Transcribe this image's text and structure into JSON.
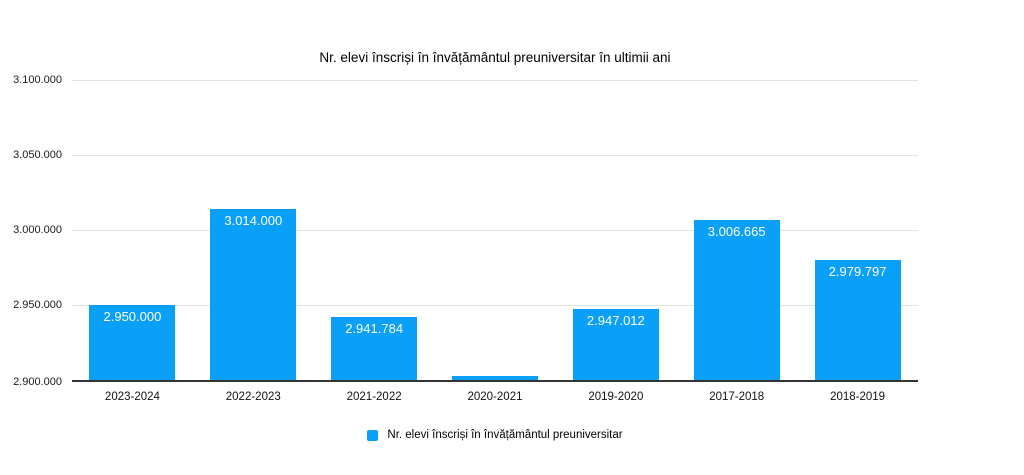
{
  "chart_data": {
    "type": "bar",
    "title": "Nr. elevi înscriși în învățământul preuniversitar în ultimii ani",
    "categories": [
      "2023-2024",
      "2022-2023",
      "2021-2022",
      "2020-2021",
      "2019-2020",
      "2017-2018",
      "2018-2019"
    ],
    "values": [
      2950000,
      3014000,
      2941784,
      2903000,
      2947012,
      3006665,
      2979797
    ],
    "bar_labels": [
      "2.950.000",
      "3.014.000",
      "2.941.784",
      "",
      "2.947.012",
      "3.006.665",
      "2.979.797"
    ],
    "xlabel": "",
    "ylabel": "",
    "ylim": [
      2900000,
      3100000
    ],
    "yticks": [
      2900000,
      2950000,
      3000000,
      3050000,
      3100000
    ],
    "ytick_labels": [
      "2.900.000",
      "2.950.000",
      "3.000.000",
      "3.050.000",
      "3.100.000"
    ],
    "grid": true,
    "legend": [
      "Nr. elevi înscriși în învățământul preuniversitar"
    ],
    "legend_position": "bottom",
    "bar_color": "#0aa0f8",
    "value_label_color": "#ffffff",
    "gridline_color": "#e3e3e3",
    "axis_line_color": "#333333"
  }
}
